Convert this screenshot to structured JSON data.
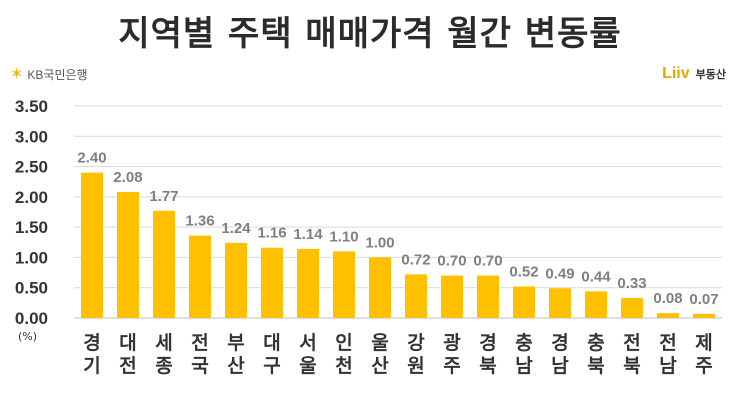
{
  "header": {
    "title": "지역별 주택 매매가격 월간 변동률",
    "kb_logo_text": "KB국민은행",
    "liiv_brand": "Liiv",
    "liiv_sub": "부동산",
    "unit": "(%)"
  },
  "colors": {
    "bar": "#ffc000",
    "grid": "#d9d9d9",
    "value_label": "#7f7f7f",
    "tick_label": "#333333"
  },
  "chart_data": {
    "type": "bar",
    "title": "지역별 주택 매매가격 월간 변동률",
    "ylabel": "(%)",
    "ylim": [
      0,
      3.5
    ],
    "yticks": [
      "0.00",
      "0.50",
      "1.00",
      "1.50",
      "2.00",
      "2.50",
      "3.00",
      "3.50"
    ],
    "grid": true,
    "categories": [
      [
        "경",
        "기"
      ],
      [
        "대",
        "전"
      ],
      [
        "세",
        "종"
      ],
      [
        "전",
        "국"
      ],
      [
        "부",
        "산"
      ],
      [
        "대",
        "구"
      ],
      [
        "서",
        "울"
      ],
      [
        "인",
        "천"
      ],
      [
        "울",
        "산"
      ],
      [
        "강",
        "원"
      ],
      [
        "광",
        "주"
      ],
      [
        "경",
        "북"
      ],
      [
        "충",
        "남"
      ],
      [
        "경",
        "남"
      ],
      [
        "충",
        "북"
      ],
      [
        "전",
        "북"
      ],
      [
        "전",
        "남"
      ],
      [
        "제",
        "주"
      ]
    ],
    "values": [
      2.4,
      2.08,
      1.77,
      1.36,
      1.24,
      1.16,
      1.14,
      1.1,
      1.0,
      0.72,
      0.7,
      0.7,
      0.52,
      0.49,
      0.44,
      0.33,
      0.08,
      0.07
    ],
    "value_labels": [
      "2.40",
      "2.08",
      "1.77",
      "1.36",
      "1.24",
      "1.16",
      "1.14",
      "1.10",
      "1.00",
      "0.72",
      "0.70",
      "0.70",
      "0.52",
      "0.49",
      "0.44",
      "0.33",
      "0.08",
      "0.07"
    ]
  }
}
